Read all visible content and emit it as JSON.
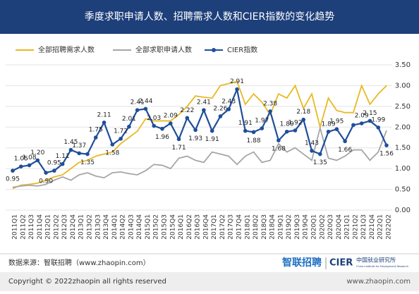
{
  "chart_data": {
    "type": "line",
    "title": "季度求职申请人数、招聘需求人数和CIER指数的变化趋势",
    "categories": [
      "2011Q1",
      "2011Q2",
      "2011Q3",
      "2011Q4",
      "2012Q1",
      "2012Q2",
      "2012Q3",
      "2012Q4",
      "2013Q1",
      "2013Q2",
      "2013Q3",
      "2013Q4",
      "2014Q1",
      "2014Q2",
      "2014Q3",
      "2014Q4",
      "2015Q1",
      "2015Q2",
      "2015Q3",
      "2015Q4",
      "2016Q1",
      "2016Q2",
      "2016Q3",
      "2016Q4",
      "2017Q1",
      "2017Q2",
      "2017Q3",
      "2017Q4",
      "2018Q1",
      "2018Q2",
      "2018Q3",
      "2018Q4",
      "2019Q1",
      "2019Q2",
      "2019Q3",
      "2019Q4",
      "2020Q1",
      "2020Q2",
      "2020Q3",
      "2020Q4",
      "2021Q1",
      "2021Q2",
      "2021Q3",
      "2021Q4",
      "2022Q1",
      "2022Q2"
    ],
    "series": [
      {
        "name": "全部招聘需求人数",
        "color": "#e8b923",
        "marker": false,
        "values": [
          0.52,
          0.6,
          0.62,
          0.65,
          0.72,
          0.8,
          0.85,
          1.0,
          1.15,
          1.2,
          1.3,
          1.35,
          1.4,
          1.6,
          1.75,
          1.9,
          2.2,
          2.15,
          2.15,
          2.15,
          2.3,
          2.5,
          2.75,
          2.72,
          2.7,
          3.0,
          3.05,
          3.1,
          2.55,
          2.8,
          2.6,
          2.3,
          2.8,
          2.7,
          3.0,
          2.45,
          2.8,
          2.0,
          2.7,
          2.4,
          2.35,
          2.35,
          3.0,
          2.55,
          2.8,
          3.0
        ]
      },
      {
        "name": "全部求职申请人数",
        "color": "#a6a6a6",
        "marker": false,
        "values": [
          0.55,
          0.58,
          0.6,
          0.58,
          0.62,
          0.72,
          0.8,
          0.72,
          0.85,
          0.9,
          0.82,
          0.78,
          0.9,
          0.92,
          0.88,
          0.85,
          0.95,
          1.1,
          1.08,
          1.0,
          1.25,
          1.3,
          1.2,
          1.15,
          1.4,
          1.35,
          1.3,
          1.1,
          1.3,
          1.4,
          1.15,
          1.2,
          1.6,
          1.4,
          1.5,
          1.35,
          1.2,
          1.98,
          1.25,
          1.2,
          1.3,
          1.45,
          1.45,
          1.2,
          1.4,
          1.92
        ]
      },
      {
        "name": "CIER指数",
        "color": "#1f4e9a",
        "marker": true,
        "values": [
          0.95,
          1.05,
          1.08,
          1.2,
          0.9,
          0.95,
          1.11,
          1.45,
          1.37,
          1.35,
          1.75,
          2.11,
          1.58,
          1.72,
          2.01,
          2.41,
          2.44,
          2.03,
          1.96,
          2.09,
          1.71,
          2.22,
          1.93,
          2.41,
          1.91,
          2.26,
          2.43,
          2.91,
          1.91,
          1.88,
          1.97,
          2.38,
          1.68,
          1.89,
          1.92,
          2.18,
          1.43,
          1.35,
          1.89,
          1.95,
          1.66,
          2.05,
          2.09,
          2.15,
          1.99,
          1.56
        ],
        "value_labels": [
          "0.95",
          "1.05",
          "1.08",
          "1.20",
          "0.90",
          "0.95",
          "1.11",
          "1.45",
          "1.37",
          "1.35",
          "1.75",
          "2.11",
          "1.58",
          "1.72",
          "2.01",
          "2.41",
          "2.44",
          "2.03",
          "1.96",
          "2.09",
          "1.71",
          "2.22",
          "1.93",
          "2.41",
          "1.91",
          "2.26",
          "2.43",
          "2.91",
          "1.91",
          "1.88",
          "1.97",
          "2.38",
          "1.68",
          "1.89",
          "1.92",
          "2.18",
          "1.43",
          "1.35",
          "1.89",
          "1.95",
          "1.66",
          null,
          "2.09",
          "2.15",
          "1.99",
          "1.56"
        ]
      }
    ],
    "ylim": [
      0,
      3.5
    ],
    "yticks": [
      {
        "value": 0,
        "label": "0.00"
      },
      {
        "value": 0.5,
        "label": "0.50"
      },
      {
        "value": 1,
        "label": "1.00"
      },
      {
        "value": 1.5,
        "label": "1.50"
      },
      {
        "value": 2,
        "label": "2.00"
      },
      {
        "value": 2.5,
        "label": "2.50"
      },
      {
        "value": 3,
        "label": "3.00"
      },
      {
        "value": 3.5,
        "label": "3.50"
      }
    ],
    "grid": true,
    "legend": "top-left"
  },
  "footer": {
    "source": "数据来源：智联招聘（www.zhaopin.com）",
    "logo1": "智联招聘",
    "logo2": "CIER",
    "logo2_cn": "中国就业研究所",
    "logo2_en": "China Institute for Employment Research",
    "copyright": "Copyright © 2022zhaopin all rights reserved",
    "url": "www.zhaopin.com"
  }
}
